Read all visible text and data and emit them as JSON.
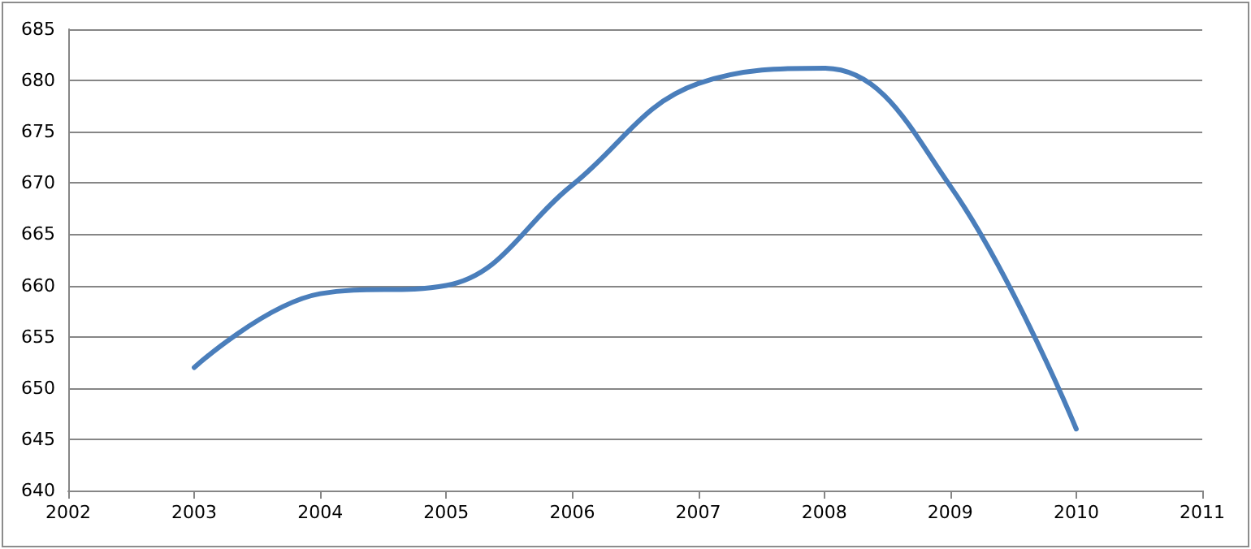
{
  "chart_data": {
    "type": "line",
    "x": [
      2003,
      2004,
      2005,
      2006,
      2007,
      2008,
      2009,
      2010
    ],
    "series": [
      {
        "color": "#4a7ebb",
        "values": [
          652,
          659.2,
          660,
          669.8,
          679.7,
          681.2,
          669.7,
          646
        ]
      }
    ],
    "xlim": [
      2002,
      2011
    ],
    "xticks": [
      2002,
      2003,
      2004,
      2005,
      2006,
      2007,
      2008,
      2009,
      2010,
      2011
    ],
    "ylim": [
      640,
      685
    ],
    "yticks": [
      640,
      645,
      650,
      655,
      660,
      665,
      670,
      675,
      680,
      685
    ],
    "grid": "y",
    "marker": "none",
    "line_style": "solid"
  }
}
